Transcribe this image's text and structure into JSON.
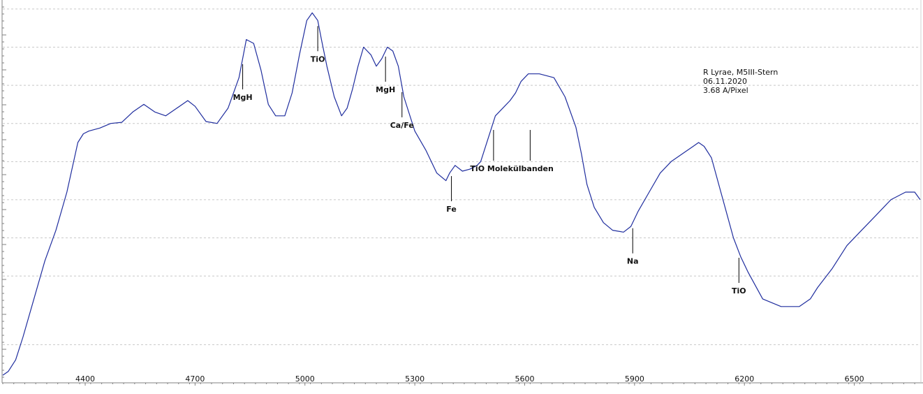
{
  "chart_data": {
    "type": "line",
    "title": "",
    "xlabel": "",
    "ylabel": "",
    "xlim": [
      4175,
      6680
    ],
    "ylim": [
      0,
      1
    ],
    "grid": true,
    "grid_style": "dashed-horizontal",
    "legend": "none",
    "colors": {
      "line": "#1f2d9e",
      "grid": "#c8c8c8",
      "axis": "#808080",
      "marker": "#000000"
    },
    "annotation_lines": [
      "R Lyrae, M5III-Stern",
      "06.11.2020",
      "3.68 A/Pixel"
    ],
    "x_ticks": [
      4400,
      4700,
      5000,
      5300,
      5600,
      5900,
      6200,
      6500
    ],
    "y_grid": [
      0.1,
      0.28,
      0.38,
      0.48,
      0.58,
      0.68,
      0.78,
      0.88,
      0.98
    ],
    "series": [
      {
        "x": [
          4175,
          4190,
          4210,
          4230,
          4260,
          4290,
          4320,
          4350,
          4380,
          4395,
          4410,
          4440,
          4470,
          4500,
          4530,
          4560,
          4590,
          4620,
          4650,
          4680,
          4700,
          4730,
          4760,
          4790,
          4820,
          4840,
          4860,
          4880,
          4900,
          4920,
          4945,
          4965,
          4985,
          5005,
          5020,
          5035,
          5045,
          5060,
          5080,
          5100,
          5115,
          5130,
          5145,
          5160,
          5180,
          5195,
          5210,
          5225,
          5240,
          5255,
          5270,
          5300,
          5330,
          5360,
          5385,
          5395,
          5410,
          5430,
          5450,
          5470,
          5480,
          5500,
          5520,
          5540,
          5560,
          5575,
          5590,
          5610,
          5640,
          5680,
          5710,
          5740,
          5755,
          5770,
          5790,
          5815,
          5840,
          5870,
          5890,
          5910,
          5940,
          5970,
          6000,
          6030,
          6060,
          6075,
          6090,
          6110,
          6130,
          6150,
          6170,
          6190,
          6210,
          6250,
          6300,
          6350,
          6380,
          6400,
          6440,
          6480,
          6520,
          6560,
          6600,
          6640,
          6665,
          6680
        ],
        "y": [
          0.02,
          0.03,
          0.06,
          0.12,
          0.22,
          0.32,
          0.4,
          0.5,
          0.63,
          0.653,
          0.66,
          0.668,
          0.68,
          0.683,
          0.71,
          0.73,
          0.71,
          0.7,
          0.72,
          0.74,
          0.725,
          0.685,
          0.68,
          0.72,
          0.8,
          0.9,
          0.89,
          0.82,
          0.73,
          0.7,
          0.7,
          0.76,
          0.86,
          0.95,
          0.97,
          0.95,
          0.9,
          0.83,
          0.75,
          0.7,
          0.72,
          0.77,
          0.83,
          0.88,
          0.86,
          0.83,
          0.85,
          0.88,
          0.87,
          0.83,
          0.75,
          0.66,
          0.61,
          0.55,
          0.53,
          0.55,
          0.57,
          0.555,
          0.56,
          0.57,
          0.58,
          0.64,
          0.7,
          0.72,
          0.74,
          0.76,
          0.79,
          0.81,
          0.81,
          0.8,
          0.75,
          0.67,
          0.6,
          0.52,
          0.46,
          0.42,
          0.4,
          0.395,
          0.41,
          0.45,
          0.5,
          0.55,
          0.58,
          0.6,
          0.62,
          0.63,
          0.62,
          0.59,
          0.52,
          0.45,
          0.38,
          0.33,
          0.29,
          0.22,
          0.2,
          0.2,
          0.22,
          0.25,
          0.3,
          0.36,
          0.4,
          0.44,
          0.48,
          0.5,
          0.5,
          0.48
        ]
      }
    ],
    "feature_markers": [
      {
        "label": "MgH",
        "x": 4830
      },
      {
        "label": "TiO",
        "x": 5035
      },
      {
        "label": "MgH",
        "x": 5220
      },
      {
        "label": "Ca/Fe",
        "x": 5265
      },
      {
        "label": "Fe",
        "x": 5400
      },
      {
        "label": "Na",
        "x": 5895
      },
      {
        "label": "TiO",
        "x": 6185
      }
    ],
    "band_marker": {
      "label": "TiO Molekülbanden",
      "x": [
        5515,
        5615
      ]
    }
  }
}
